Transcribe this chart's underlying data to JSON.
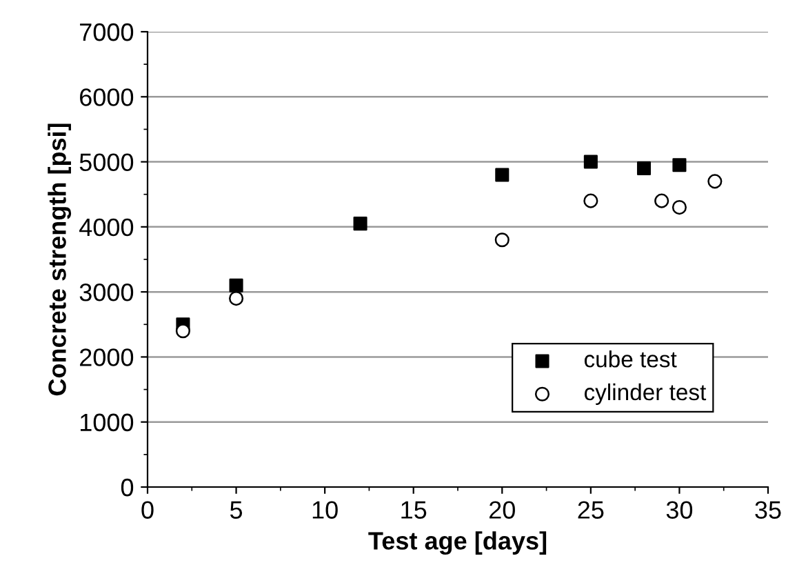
{
  "chart_data": {
    "type": "scatter",
    "xlabel": "Test age [days]",
    "ylabel": "Concrete strength [psi]",
    "xlim": [
      0,
      35
    ],
    "xticks": [
      0,
      5,
      10,
      15,
      20,
      25,
      30,
      35
    ],
    "ylim": [
      0,
      7000
    ],
    "yticks": [
      0,
      1000,
      2000,
      3000,
      4000,
      5000,
      6000,
      7000
    ],
    "grid": "y",
    "legend": "bottom right",
    "series": [
      {
        "name": "cube test",
        "color": "#000000",
        "marker": "square",
        "x": [
          2,
          5,
          12,
          20,
          25,
          28,
          30
        ],
        "values": [
          2500,
          3100,
          4050,
          4800,
          5000,
          4900,
          4950
        ]
      },
      {
        "name": "cylinder test",
        "color": "#000000",
        "marker": "circle",
        "x": [
          2,
          5,
          20,
          25,
          29,
          30,
          32
        ],
        "values": [
          2400,
          2900,
          3800,
          4400,
          4400,
          4300,
          4700
        ]
      }
    ]
  }
}
